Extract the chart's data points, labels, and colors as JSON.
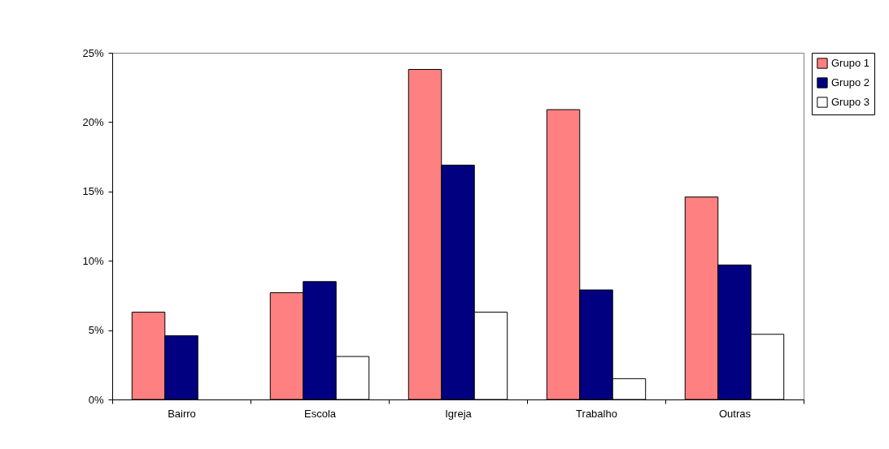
{
  "chart_data": {
    "type": "bar",
    "categories": [
      "Bairro",
      "Escola",
      "Igreja",
      "Trabalho",
      "Outras"
    ],
    "series": [
      {
        "name": "Grupo 1",
        "color": "#ff8080",
        "values": [
          6.3,
          7.7,
          23.8,
          20.9,
          14.6
        ]
      },
      {
        "name": "Grupo 2",
        "color": "#000080",
        "values": [
          4.6,
          8.5,
          16.9,
          7.9,
          9.7
        ]
      },
      {
        "name": "Grupo 3",
        "color": "#ffffff",
        "values": [
          null,
          3.1,
          6.3,
          1.5,
          4.7
        ]
      }
    ],
    "ylim": [
      0,
      25
    ],
    "yticks": [
      {
        "value": 0,
        "label": "0%"
      },
      {
        "value": 5,
        "label": "5%"
      },
      {
        "value": 10,
        "label": "10%"
      },
      {
        "value": 15,
        "label": "15%"
      },
      {
        "value": 20,
        "label": "20%"
      },
      {
        "value": 25,
        "label": "25%"
      }
    ],
    "grid": false,
    "legend": "right"
  }
}
